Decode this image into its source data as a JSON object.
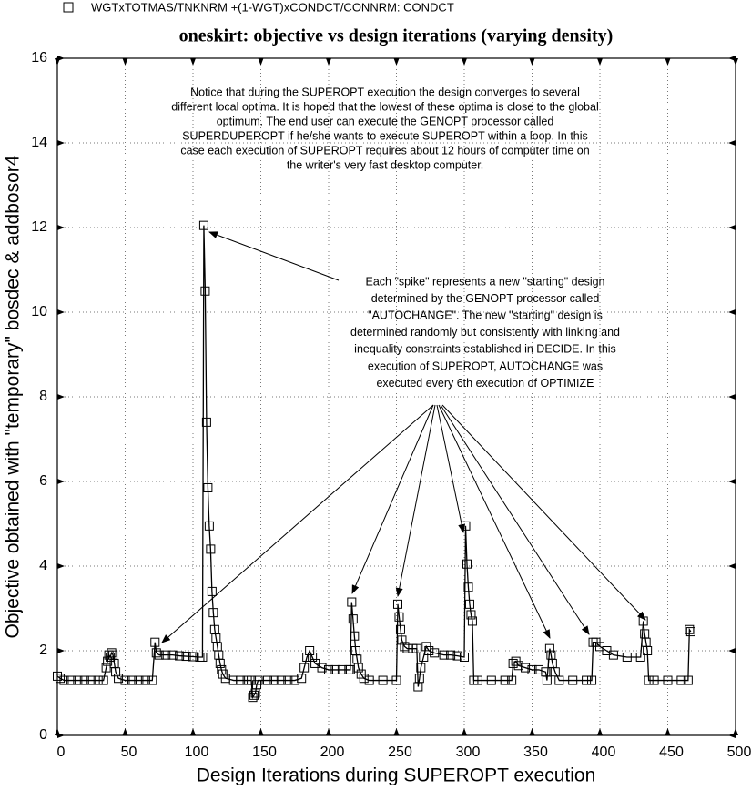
{
  "chart_data": {
    "type": "line",
    "title": "oneskirt: objective vs design iterations (varying density)",
    "xlabel": "Design Iterations during SUPEROPT execution",
    "ylabel": "Objective obtained with \"temporary\" bosdec & addbosor4",
    "xlim": [
      0,
      500
    ],
    "xticks": [
      0,
      50,
      100,
      150,
      200,
      250,
      300,
      350,
      400,
      450,
      500
    ],
    "ylim": [
      0,
      16
    ],
    "yticks": [
      0,
      2,
      4,
      6,
      8,
      10,
      12,
      14,
      16
    ],
    "grid": true,
    "annotations": [
      {
        "lines": [
          "Notice that during the SUPEROPT execution the design converges to several",
          "different local optima. It is hoped that the lowest of these optima is close to the global",
          "optimum. The end user can execute the GENOPT processor called",
          "SUPERDUPEROPT if he/she wants to execute SUPEROPT within a loop. In this",
          "case each execution of SUPEROPT requires about 12 hours of computer time on",
          "the writer's very fast desktop computer."
        ]
      },
      {
        "lines": [
          "Each \"spike\" represents a new \"starting\" design",
          "determined by the GENOPT processor called",
          "\"AUTOCHANGE\". The new \"starting\" design is",
          "determined randomly but consistently with linking and",
          "inequality constraints established in DECIDE. In this",
          "execution of SUPEROPT, AUTOCHANGE was",
          "executed every 6th execution of OPTIMIZE"
        ]
      }
    ],
    "x": [
      0,
      2,
      5,
      10,
      15,
      20,
      25,
      30,
      34,
      36,
      37,
      38,
      39,
      40,
      41,
      42,
      43,
      45,
      50,
      55,
      60,
      65,
      70,
      72,
      73,
      75,
      80,
      85,
      90,
      95,
      100,
      105,
      107,
      108,
      109,
      110,
      111,
      112,
      113,
      114,
      115,
      116,
      117,
      118,
      119,
      120,
      121,
      122,
      124,
      130,
      135,
      140,
      143,
      144,
      145,
      146,
      147,
      148,
      155,
      160,
      165,
      170,
      175,
      180,
      182,
      184,
      186,
      188,
      190,
      195,
      200,
      205,
      210,
      215,
      216,
      217,
      218,
      219,
      220,
      221,
      222,
      224,
      226,
      230,
      240,
      250,
      251,
      252,
      253,
      254,
      256,
      258,
      262,
      265,
      266,
      267,
      268,
      270,
      272,
      274,
      278,
      285,
      290,
      295,
      300,
      301,
      302,
      303,
      304,
      305,
      306,
      307,
      310,
      320,
      330,
      335,
      336,
      338,
      340,
      345,
      350,
      355,
      360,
      361,
      363,
      364,
      365,
      367,
      370,
      380,
      390,
      394,
      395,
      397,
      400,
      405,
      410,
      420,
      430,
      432,
      433,
      434,
      435,
      436,
      440,
      450,
      460,
      465,
      466,
      467
    ],
    "series": [
      {
        "name": "WGTxTOTMAS/TNKNRM +(1-WGT)xCONDCT/CONNRM: CONDCT",
        "color": "#000000",
        "values": [
          1.4,
          1.35,
          1.3,
          1.3,
          1.3,
          1.3,
          1.3,
          1.3,
          1.3,
          1.6,
          1.75,
          1.9,
          1.85,
          1.95,
          1.9,
          1.7,
          1.5,
          1.35,
          1.3,
          1.3,
          1.3,
          1.3,
          1.3,
          2.2,
          1.95,
          1.9,
          1.9,
          1.9,
          1.88,
          1.87,
          1.86,
          1.85,
          1.85,
          12.05,
          10.5,
          7.4,
          5.85,
          4.95,
          4.4,
          3.4,
          2.9,
          2.5,
          2.3,
          2.1,
          1.9,
          1.7,
          1.55,
          1.45,
          1.35,
          1.3,
          1.3,
          1.3,
          1.3,
          0.9,
          0.95,
          1.0,
          1.2,
          1.3,
          1.3,
          1.3,
          1.3,
          1.3,
          1.3,
          1.35,
          1.6,
          1.85,
          2.0,
          1.85,
          1.7,
          1.6,
          1.55,
          1.55,
          1.55,
          1.55,
          1.55,
          3.15,
          2.75,
          2.35,
          2.0,
          1.8,
          1.6,
          1.45,
          1.35,
          1.3,
          1.3,
          1.3,
          3.1,
          2.8,
          2.5,
          2.25,
          2.1,
          2.05,
          2.05,
          2.05,
          1.15,
          1.35,
          1.6,
          1.85,
          2.1,
          2.0,
          1.95,
          1.9,
          1.9,
          1.88,
          1.85,
          4.95,
          4.05,
          3.5,
          3.1,
          2.85,
          2.7,
          1.3,
          1.3,
          1.3,
          1.3,
          1.3,
          1.7,
          1.75,
          1.65,
          1.6,
          1.55,
          1.55,
          1.5,
          1.3,
          2.05,
          1.9,
          1.7,
          1.5,
          1.3,
          1.3,
          1.3,
          1.3,
          2.2,
          2.2,
          2.1,
          2.0,
          1.9,
          1.85,
          1.85,
          2.7,
          2.4,
          2.2,
          2.0,
          1.3,
          1.3,
          1.3,
          1.3,
          1.3,
          2.5,
          2.45
        ]
      }
    ]
  }
}
